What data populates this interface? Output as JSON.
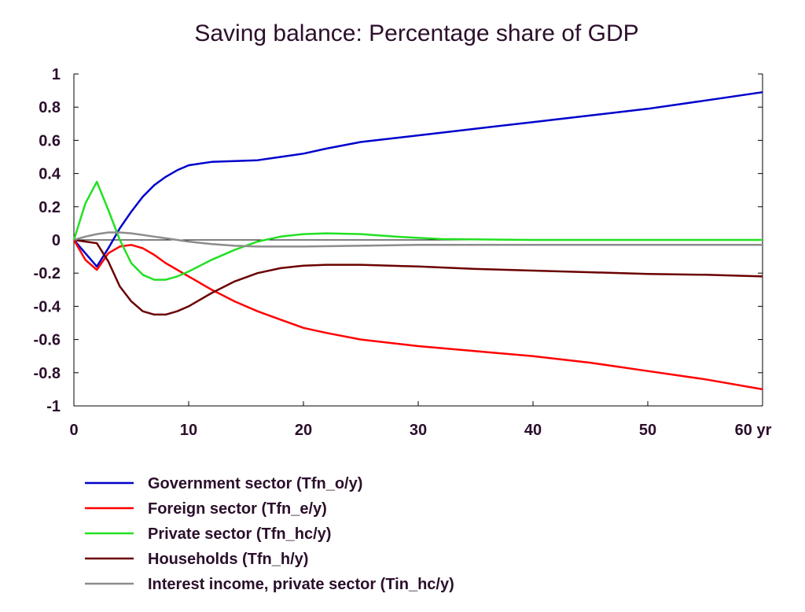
{
  "chart_data": {
    "type": "line",
    "title": "Saving balance: Percentage share of GDP",
    "xlabel": "",
    "ylabel": "",
    "xlim": [
      0,
      60
    ],
    "ylim": [
      -1,
      1
    ],
    "x_ticks": [
      0,
      10,
      20,
      30,
      40,
      50,
      60
    ],
    "x_tick_labels": [
      "0",
      "10",
      "20",
      "30",
      "40",
      "50",
      "60 yr"
    ],
    "y_ticks": [
      1,
      0.8,
      0.6,
      0.4,
      0.2,
      0,
      -0.2,
      -0.4,
      -0.6,
      -0.8,
      -1
    ],
    "y_tick_labels": [
      "1",
      "0.8",
      "0.6",
      "0.4",
      "0.2",
      "0",
      "-0.2",
      "-0.4",
      "-0.6",
      "-0.8",
      "-1"
    ],
    "grid": false,
    "zero_line": true,
    "legend_position": "bottom-left",
    "series": [
      {
        "name": "Government sector (Tfn_o/y)",
        "color": "#0000cc",
        "points": [
          [
            0,
            0
          ],
          [
            1,
            -0.08
          ],
          [
            2,
            -0.16
          ],
          [
            3,
            -0.05
          ],
          [
            4,
            0.07
          ],
          [
            5,
            0.17
          ],
          [
            6,
            0.26
          ],
          [
            7,
            0.33
          ],
          [
            8,
            0.38
          ],
          [
            9,
            0.42
          ],
          [
            10,
            0.45
          ],
          [
            12,
            0.47
          ],
          [
            14,
            0.475
          ],
          [
            16,
            0.48
          ],
          [
            18,
            0.5
          ],
          [
            20,
            0.52
          ],
          [
            22,
            0.55
          ],
          [
            25,
            0.59
          ],
          [
            30,
            0.63
          ],
          [
            35,
            0.67
          ],
          [
            40,
            0.71
          ],
          [
            45,
            0.75
          ],
          [
            50,
            0.79
          ],
          [
            55,
            0.84
          ],
          [
            60,
            0.89
          ]
        ]
      },
      {
        "name": "Foreign sector (Tfn_e/y)",
        "color": "#ff0000",
        "points": [
          [
            0,
            0
          ],
          [
            1,
            -0.12
          ],
          [
            2,
            -0.18
          ],
          [
            3,
            -0.08
          ],
          [
            4,
            -0.04
          ],
          [
            5,
            -0.03
          ],
          [
            6,
            -0.05
          ],
          [
            7,
            -0.09
          ],
          [
            8,
            -0.14
          ],
          [
            10,
            -0.22
          ],
          [
            12,
            -0.3
          ],
          [
            14,
            -0.37
          ],
          [
            16,
            -0.43
          ],
          [
            18,
            -0.48
          ],
          [
            20,
            -0.53
          ],
          [
            22,
            -0.56
          ],
          [
            25,
            -0.6
          ],
          [
            30,
            -0.64
          ],
          [
            35,
            -0.67
          ],
          [
            40,
            -0.7
          ],
          [
            45,
            -0.74
          ],
          [
            50,
            -0.79
          ],
          [
            55,
            -0.84
          ],
          [
            60,
            -0.9
          ]
        ]
      },
      {
        "name": "Private sector (Tfn_hc/y)",
        "color": "#22e022",
        "points": [
          [
            0,
            0
          ],
          [
            1,
            0.22
          ],
          [
            2,
            0.35
          ],
          [
            3,
            0.18
          ],
          [
            4,
            0.0
          ],
          [
            5,
            -0.14
          ],
          [
            6,
            -0.21
          ],
          [
            7,
            -0.24
          ],
          [
            8,
            -0.24
          ],
          [
            9,
            -0.22
          ],
          [
            10,
            -0.19
          ],
          [
            12,
            -0.12
          ],
          [
            14,
            -0.06
          ],
          [
            16,
            -0.01
          ],
          [
            18,
            0.02
          ],
          [
            20,
            0.035
          ],
          [
            22,
            0.04
          ],
          [
            25,
            0.035
          ],
          [
            28,
            0.02
          ],
          [
            32,
            0.005
          ],
          [
            40,
            0.0
          ],
          [
            50,
            0.0
          ],
          [
            60,
            0.0
          ]
        ]
      },
      {
        "name": "Households (Tfn_h/y)",
        "color": "#6b0000",
        "points": [
          [
            0,
            0
          ],
          [
            1,
            -0.01
          ],
          [
            2,
            -0.02
          ],
          [
            3,
            -0.13
          ],
          [
            4,
            -0.28
          ],
          [
            5,
            -0.37
          ],
          [
            6,
            -0.43
          ],
          [
            7,
            -0.45
          ],
          [
            8,
            -0.45
          ],
          [
            9,
            -0.43
          ],
          [
            10,
            -0.4
          ],
          [
            12,
            -0.32
          ],
          [
            14,
            -0.25
          ],
          [
            16,
            -0.2
          ],
          [
            18,
            -0.17
          ],
          [
            20,
            -0.155
          ],
          [
            22,
            -0.15
          ],
          [
            25,
            -0.15
          ],
          [
            30,
            -0.16
          ],
          [
            35,
            -0.175
          ],
          [
            40,
            -0.185
          ],
          [
            45,
            -0.195
          ],
          [
            50,
            -0.205
          ],
          [
            55,
            -0.21
          ],
          [
            60,
            -0.22
          ]
        ]
      },
      {
        "name": "Interest income, private sector (Tin_hc/y)",
        "color": "#8c8c8c",
        "points": [
          [
            0,
            0
          ],
          [
            1,
            0.02
          ],
          [
            2,
            0.035
          ],
          [
            3,
            0.045
          ],
          [
            4,
            0.045
          ],
          [
            5,
            0.04
          ],
          [
            6,
            0.03
          ],
          [
            7,
            0.02
          ],
          [
            8,
            0.01
          ],
          [
            9,
            0.0
          ],
          [
            10,
            -0.01
          ],
          [
            12,
            -0.025
          ],
          [
            14,
            -0.035
          ],
          [
            16,
            -0.04
          ],
          [
            20,
            -0.04
          ],
          [
            25,
            -0.035
          ],
          [
            30,
            -0.03
          ],
          [
            40,
            -0.03
          ],
          [
            50,
            -0.03
          ],
          [
            60,
            -0.03
          ]
        ]
      }
    ]
  }
}
